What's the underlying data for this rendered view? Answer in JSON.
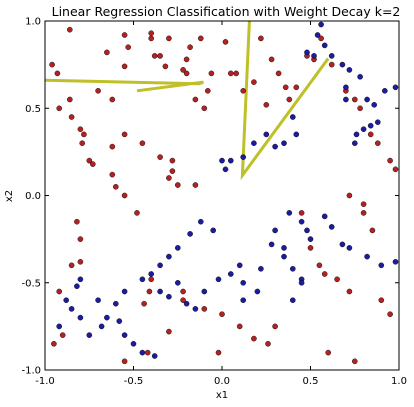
{
  "chart_data": {
    "type": "scatter",
    "title": "Linear Regression Classification with Weight Decay k=2",
    "xlabel": "x1",
    "ylabel": "x2",
    "xlim": [
      -1.0,
      1.0
    ],
    "ylim": [
      -1.0,
      1.0
    ],
    "xticks": [
      "-1.0",
      "-0.5",
      "0.0",
      "0.5",
      "1.0"
    ],
    "yticks": [
      "1.0",
      "0.5",
      "0.0",
      "-0.5",
      "-1.0"
    ],
    "grid": false,
    "colors": {
      "red": "#b22222",
      "blue": "#1c1c9e",
      "boundary": "#bfbf28"
    },
    "boundary": [
      {
        "x": [
          0.155,
          0.115,
          0.6
        ],
        "y": [
          1.0,
          0.115,
          0.785
        ]
      },
      {
        "x": [
          -0.48,
          -0.105,
          -0.13,
          -1.0
        ],
        "y": [
          0.6,
          0.65,
          0.64,
          0.66
        ]
      }
    ],
    "series": [
      {
        "x": [
          -0.86,
          -0.55,
          -0.53,
          -0.4,
          -0.38,
          -0.32,
          -0.65,
          -0.55,
          -0.7,
          -0.62,
          -0.2,
          -0.15,
          -0.1,
          -0.06,
          -0.08,
          0.05,
          0.08,
          0.12,
          0.18,
          0.25,
          -0.78,
          -0.62,
          -0.55,
          -0.45,
          -0.35,
          -0.28,
          -0.28,
          -0.3,
          -0.25,
          -0.15,
          -0.22,
          -0.22,
          -0.1,
          0.0,
          -0.02,
          -0.96,
          -0.93,
          -0.92,
          -0.86,
          -0.85,
          -0.8,
          -0.79,
          -0.75,
          -0.73,
          -0.62,
          -0.6,
          -0.55,
          -0.48,
          -0.4,
          -0.35,
          -0.18,
          -0.22,
          -0.2,
          -0.3,
          -0.12,
          0.02,
          0.22,
          0.28,
          0.32,
          0.36,
          0.38,
          0.42,
          0.48,
          0.52,
          0.56,
          0.62,
          0.7,
          0.75,
          0.78,
          0.84,
          0.88,
          0.95,
          0.98,
          0.72,
          0.8,
          0.8,
          0.85,
          0.45,
          0.5,
          0.55,
          0.58,
          0.65,
          0.72,
          0.9,
          0.95,
          -0.95,
          -0.9,
          -0.92,
          -0.85,
          -0.8,
          -0.8,
          -0.82,
          0.1,
          0.18,
          0.26,
          0.3,
          0.6,
          0.75,
          -0.42,
          -0.55,
          -0.3,
          -0.44,
          -0.41,
          -0.4
        ],
        "y": [
          0.95,
          0.92,
          0.85,
          0.93,
          0.8,
          0.74,
          0.82,
          0.74,
          0.6,
          0.55,
          0.7,
          0.55,
          0.5,
          0.7,
          0.6,
          0.7,
          0.7,
          0.6,
          0.65,
          0.52,
          0.35,
          0.28,
          0.35,
          0.3,
          0.22,
          0.2,
          0.14,
          0.1,
          0.06,
          0.06,
          -0.55,
          -0.6,
          -0.65,
          -0.68,
          -0.9,
          0.75,
          0.7,
          0.5,
          0.55,
          0.45,
          0.38,
          0.3,
          0.2,
          0.18,
          0.12,
          0.05,
          0.0,
          -0.1,
          0.9,
          0.8,
          0.85,
          0.72,
          0.78,
          0.9,
          0.9,
          0.88,
          0.9,
          0.78,
          0.7,
          0.62,
          0.55,
          0.62,
          0.8,
          0.78,
          0.9,
          0.75,
          0.6,
          0.55,
          0.5,
          0.35,
          0.3,
          0.2,
          0.15,
          0.0,
          -0.05,
          -0.1,
          -0.2,
          -0.1,
          -0.3,
          -0.4,
          -0.45,
          -0.48,
          -0.55,
          -0.6,
          -0.68,
          -0.85,
          -0.8,
          -0.55,
          -0.4,
          -0.38,
          -0.25,
          -0.15,
          -0.75,
          -0.82,
          -0.85,
          -0.75,
          -0.9,
          -0.95,
          -0.9,
          -0.95,
          -0.78,
          -0.62,
          -0.55,
          -0.48
        ]
      },
      {
        "x": [
          0.56,
          0.54,
          0.48,
          0.52,
          0.58,
          0.62,
          0.68,
          0.72,
          0.78,
          0.82,
          0.86,
          0.92,
          0.98,
          0.88,
          0.84,
          0.8,
          0.76,
          0.75,
          0.4,
          0.42,
          0.35,
          0.3,
          0.25,
          0.18,
          0.12,
          0.05,
          0.02,
          0.0,
          0.38,
          0.45,
          0.48,
          0.5,
          0.58,
          0.62,
          0.68,
          0.72,
          0.82,
          0.9,
          0.98,
          0.35,
          0.4,
          0.45,
          0.28,
          0.3,
          -0.05,
          -0.12,
          -0.18,
          -0.25,
          -0.3,
          -0.35,
          -0.4,
          -0.45,
          -0.55,
          -0.6,
          -0.65,
          -0.68,
          -0.75,
          -0.8,
          -0.85,
          -0.88,
          -0.92,
          -0.35,
          -0.25,
          -0.3,
          -0.2,
          -0.15,
          -0.1,
          -0.02,
          0.05,
          0.12,
          0.2,
          -0.58,
          -0.55,
          -0.5,
          -0.45,
          -0.38,
          -0.7,
          0.12,
          0.1,
          0.22,
          0.35,
          0.4,
          0.45,
          -0.8,
          -0.82,
          0.7,
          0.7
        ],
        "y": [
          0.98,
          0.92,
          0.82,
          0.8,
          0.86,
          0.8,
          0.75,
          0.72,
          0.68,
          0.55,
          0.52,
          0.6,
          0.62,
          0.42,
          0.4,
          0.38,
          0.35,
          0.3,
          0.45,
          0.35,
          0.3,
          0.28,
          0.35,
          0.3,
          0.22,
          0.2,
          0.15,
          0.2,
          -0.1,
          -0.15,
          -0.2,
          -0.25,
          -0.12,
          -0.18,
          -0.28,
          -0.3,
          -0.35,
          -0.4,
          -0.38,
          -0.35,
          -0.42,
          -0.48,
          -0.28,
          -0.2,
          -0.2,
          -0.15,
          -0.22,
          -0.3,
          -0.35,
          -0.4,
          -0.45,
          -0.48,
          -0.55,
          -0.62,
          -0.7,
          -0.75,
          -0.8,
          -0.7,
          -0.65,
          -0.6,
          -0.75,
          -0.55,
          -0.5,
          -0.58,
          -0.62,
          -0.65,
          -0.55,
          -0.48,
          -0.45,
          -0.5,
          -0.55,
          -0.72,
          -0.8,
          -0.85,
          -0.9,
          -0.92,
          -0.6,
          -0.6,
          -0.4,
          -0.42,
          -0.3,
          -0.6,
          -0.5,
          -0.48,
          -0.52,
          0.62,
          0.55
        ]
      }
    ]
  }
}
